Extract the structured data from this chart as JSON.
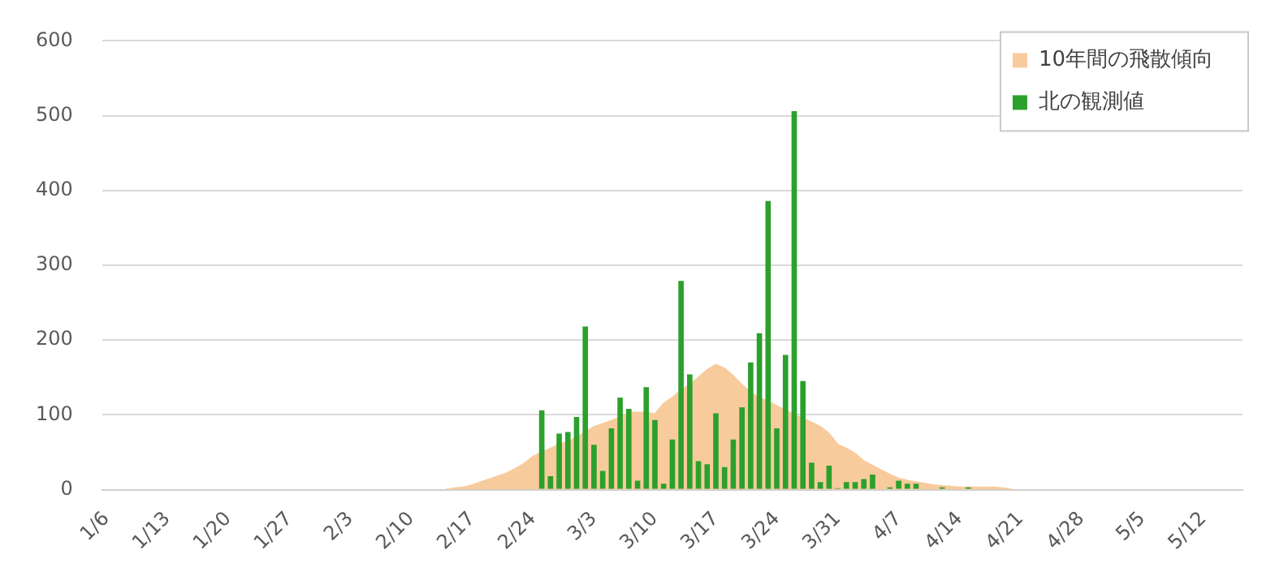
{
  "chart_data": {
    "type": "bar",
    "categories": [
      "1/6",
      null,
      null,
      null,
      null,
      null,
      null,
      "1/13",
      null,
      null,
      null,
      null,
      null,
      null,
      "1/20",
      null,
      null,
      null,
      null,
      null,
      null,
      "1/27",
      null,
      null,
      null,
      null,
      null,
      null,
      "2/3",
      null,
      null,
      null,
      null,
      null,
      null,
      "2/10",
      null,
      null,
      null,
      null,
      null,
      null,
      "2/17",
      null,
      null,
      null,
      null,
      null,
      null,
      "2/24",
      null,
      null,
      null,
      null,
      null,
      null,
      "3/3",
      null,
      null,
      null,
      null,
      null,
      null,
      "3/10",
      null,
      null,
      null,
      null,
      null,
      null,
      "3/17",
      null,
      null,
      null,
      null,
      null,
      null,
      "3/24",
      null,
      null,
      null,
      null,
      null,
      null,
      "3/31",
      null,
      null,
      null,
      null,
      null,
      null,
      "4/7",
      null,
      null,
      null,
      null,
      null,
      null,
      "4/14",
      null,
      null,
      null,
      null,
      null,
      null,
      "4/21",
      null,
      null,
      null,
      null,
      null,
      null,
      "4/28",
      null,
      null,
      null,
      null,
      null,
      null,
      "5/5",
      null,
      null,
      null,
      null,
      null,
      null,
      "5/12",
      null,
      null,
      null,
      null
    ],
    "series": [
      {
        "name": "10年間の飛散傾向",
        "type": "area",
        "color": "#f8cb9c",
        "values": [
          null,
          null,
          null,
          null,
          null,
          null,
          null,
          null,
          null,
          null,
          null,
          null,
          null,
          null,
          null,
          null,
          null,
          null,
          null,
          null,
          null,
          null,
          null,
          null,
          null,
          null,
          null,
          null,
          null,
          null,
          null,
          null,
          null,
          null,
          null,
          null,
          null,
          null,
          null,
          0,
          2,
          3,
          6,
          10,
          14,
          18,
          22,
          28,
          35,
          44,
          50,
          55,
          60,
          64,
          70,
          77,
          84,
          88,
          92,
          97,
          103,
          103,
          103,
          101,
          115,
          123,
          133,
          140,
          150,
          160,
          167,
          162,
          152,
          140,
          130,
          122,
          118,
          112,
          106,
          100,
          95,
          90,
          84,
          75,
          60,
          55,
          48,
          38,
          32,
          26,
          20,
          15,
          12,
          10,
          8,
          6,
          5,
          4,
          3,
          3,
          3,
          3,
          3,
          2,
          0,
          null,
          null,
          null,
          null,
          null,
          null,
          null,
          null,
          null,
          null,
          null,
          null,
          null,
          null,
          null,
          null,
          null,
          null,
          null,
          null,
          null,
          null,
          null,
          null,
          null,
          null
        ]
      },
      {
        "name": "北の観測値",
        "color": "#2ca02c",
        "values": [
          null,
          null,
          null,
          null,
          null,
          null,
          null,
          null,
          null,
          null,
          null,
          null,
          null,
          null,
          null,
          null,
          null,
          null,
          null,
          null,
          null,
          null,
          null,
          null,
          null,
          null,
          null,
          null,
          null,
          null,
          null,
          null,
          null,
          null,
          null,
          null,
          null,
          null,
          null,
          null,
          null,
          null,
          null,
          null,
          null,
          null,
          null,
          null,
          null,
          null,
          106,
          18,
          75,
          77,
          97,
          218,
          60,
          25,
          82,
          123,
          108,
          12,
          137,
          93,
          8,
          67,
          279,
          154,
          38,
          34,
          102,
          30,
          67,
          110,
          170,
          209,
          386,
          82,
          180,
          506,
          145,
          36,
          10,
          32,
          2,
          10,
          10,
          14,
          20,
          null,
          3,
          12,
          8,
          8,
          null,
          null,
          3,
          null,
          null,
          3,
          null,
          null,
          null,
          null,
          null,
          null,
          null,
          null,
          null,
          null,
          null,
          null,
          null,
          null,
          null,
          null,
          null,
          null,
          null,
          null,
          null,
          null,
          null,
          null,
          null,
          null,
          null,
          null,
          null,
          null,
          null
        ]
      }
    ],
    "ylim": [
      0,
      600
    ],
    "yticks": [
      0,
      100,
      200,
      300,
      400,
      500,
      600
    ],
    "grid": "y",
    "legend": "top right"
  }
}
